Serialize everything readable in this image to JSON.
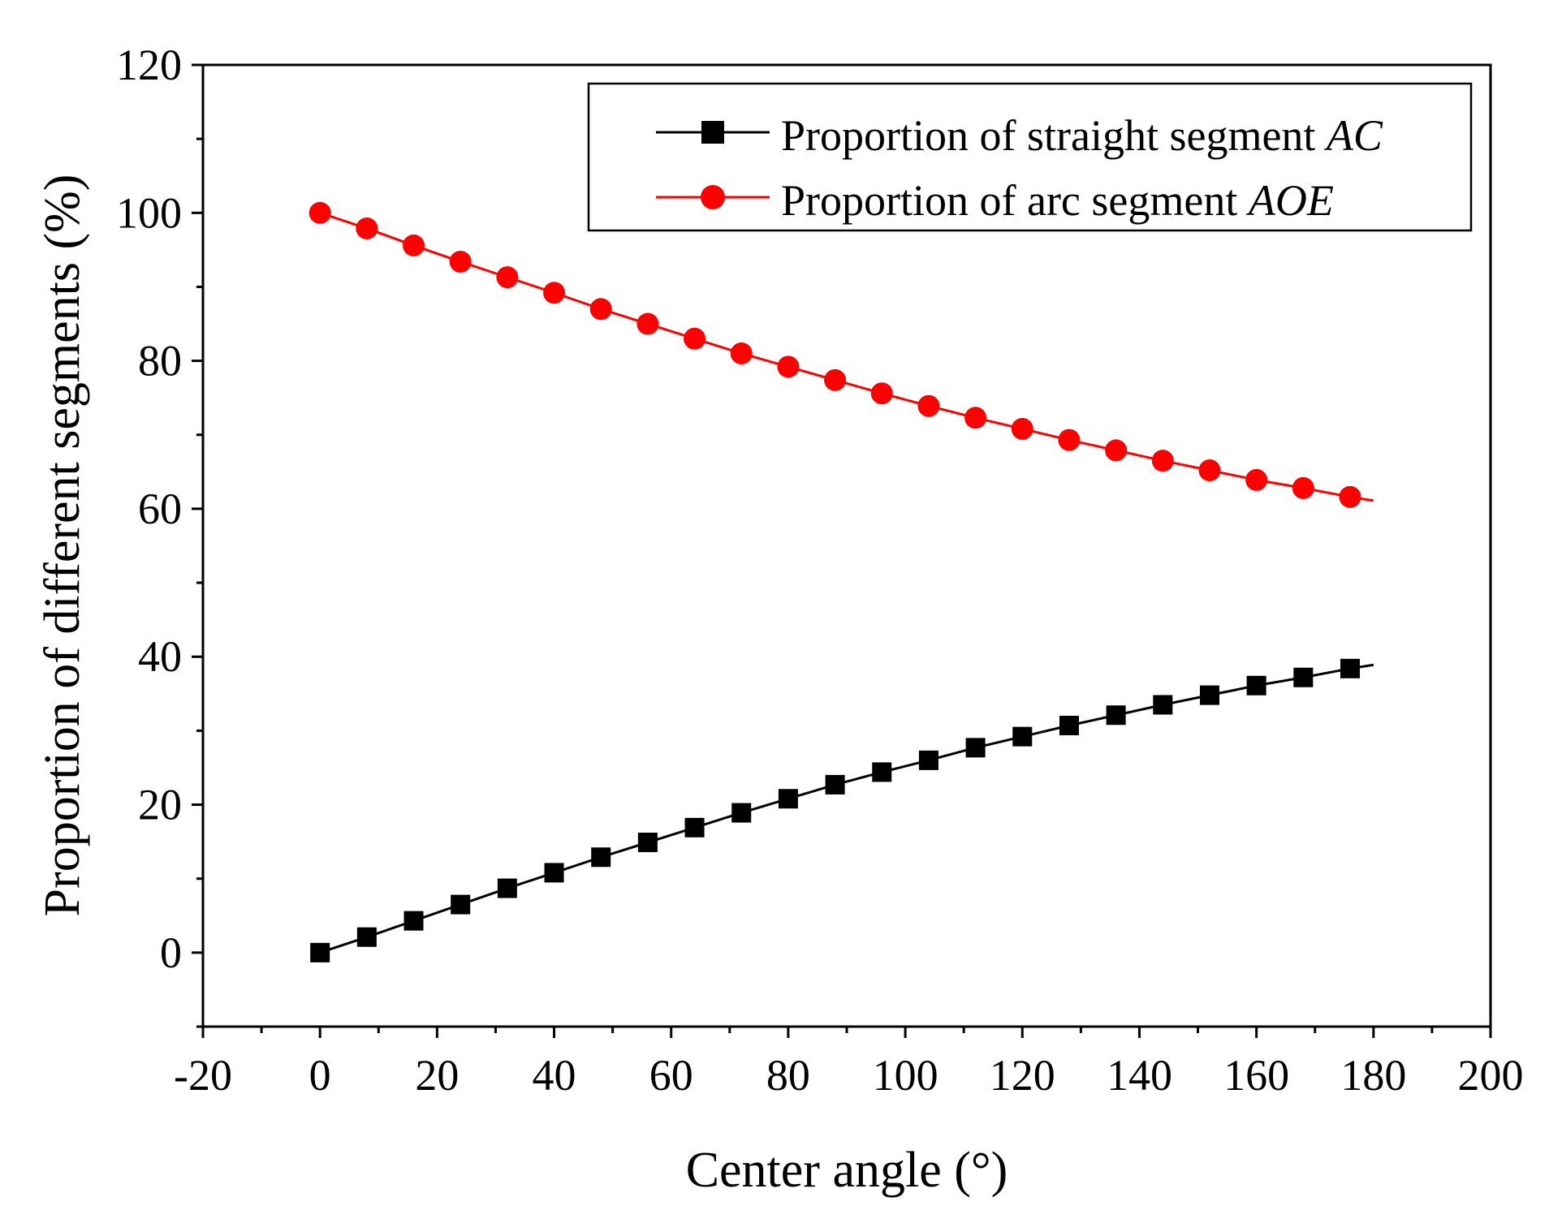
{
  "chart_data": {
    "type": "line",
    "title": "",
    "xlabel": "Center angle (°)",
    "ylabel": "Proportion of different segments (%)",
    "xlim": [
      -20,
      200
    ],
    "ylim": [
      -10,
      120
    ],
    "xticks": [
      -20,
      0,
      20,
      40,
      60,
      80,
      100,
      120,
      140,
      160,
      180,
      200
    ],
    "yticks": [
      0,
      20,
      40,
      60,
      80,
      100,
      120
    ],
    "xtick_labels": [
      "-20",
      "0",
      "20",
      "40",
      "60",
      "80",
      "100",
      "120",
      "140",
      "160",
      "180",
      "200"
    ],
    "ytick_labels": [
      "0",
      "20",
      "40",
      "60",
      "80",
      "100",
      "120"
    ],
    "legend_position": "top-right",
    "grid": false,
    "series": [
      {
        "name": "Proportion of straight segment ",
        "name_italic": "AC",
        "color": "#000000",
        "marker": "square",
        "x": [
          0,
          8,
          16,
          24,
          32,
          40,
          48,
          56,
          64,
          72,
          80,
          88,
          96,
          104,
          112,
          120,
          128,
          136,
          144,
          152,
          160,
          168,
          176
        ],
        "values": [
          0,
          2.1,
          4.3,
          6.5,
          8.7,
          10.8,
          12.9,
          14.9,
          16.9,
          18.9,
          20.8,
          22.7,
          24.4,
          26.0,
          27.7,
          29.2,
          30.7,
          32.1,
          33.5,
          34.8,
          36.1,
          37.2,
          38.4
        ],
        "line_end": [
          180,
          38.9
        ]
      },
      {
        "name": "Proportion of arc segment ",
        "name_italic": "AOE",
        "color": "#ff0000",
        "marker": "circle",
        "x": [
          0,
          8,
          16,
          24,
          32,
          40,
          48,
          56,
          64,
          72,
          80,
          88,
          96,
          104,
          112,
          120,
          128,
          136,
          144,
          152,
          160,
          168,
          176
        ],
        "values": [
          100,
          97.9,
          95.6,
          93.4,
          91.3,
          89.2,
          87.0,
          85.0,
          83.0,
          81.0,
          79.2,
          77.4,
          75.6,
          73.9,
          72.3,
          70.8,
          69.3,
          67.9,
          66.5,
          65.2,
          63.9,
          62.8,
          61.6
        ],
        "line_end": [
          180,
          61.1
        ]
      }
    ]
  }
}
